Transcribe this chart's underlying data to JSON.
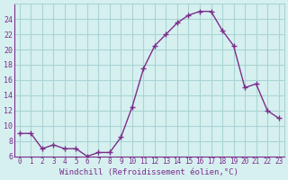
{
  "x": [
    0,
    1,
    2,
    3,
    4,
    5,
    6,
    7,
    8,
    9,
    10,
    11,
    12,
    13,
    14,
    15,
    16,
    17,
    18,
    19,
    20,
    21,
    22,
    23
  ],
  "y": [
    9.0,
    9.0,
    7.0,
    7.5,
    7.0,
    7.0,
    6.0,
    6.5,
    6.5,
    8.5,
    12.5,
    17.5,
    20.5,
    22.0,
    23.5,
    24.5,
    25.0,
    25.0,
    22.5,
    20.5,
    15.0,
    15.5,
    12.0,
    11.0
  ],
  "line_color": "#7b2d8b",
  "marker_color": "#7b2d8b",
  "bg_color": "#d6f0f0",
  "grid_color": "#aad4d4",
  "xlabel": "Windchill (Refroidissement éolien,°C)",
  "xlabel_color": "#7b2d8b",
  "tick_color": "#7b2d8b",
  "ylim": [
    6,
    26
  ],
  "xlim": [
    -0.5,
    23.5
  ],
  "yticks": [
    6,
    8,
    10,
    12,
    14,
    16,
    18,
    20,
    22,
    24
  ],
  "xticks": [
    0,
    1,
    2,
    3,
    4,
    5,
    6,
    7,
    8,
    9,
    10,
    11,
    12,
    13,
    14,
    15,
    16,
    17,
    18,
    19,
    20,
    21,
    22,
    23
  ]
}
